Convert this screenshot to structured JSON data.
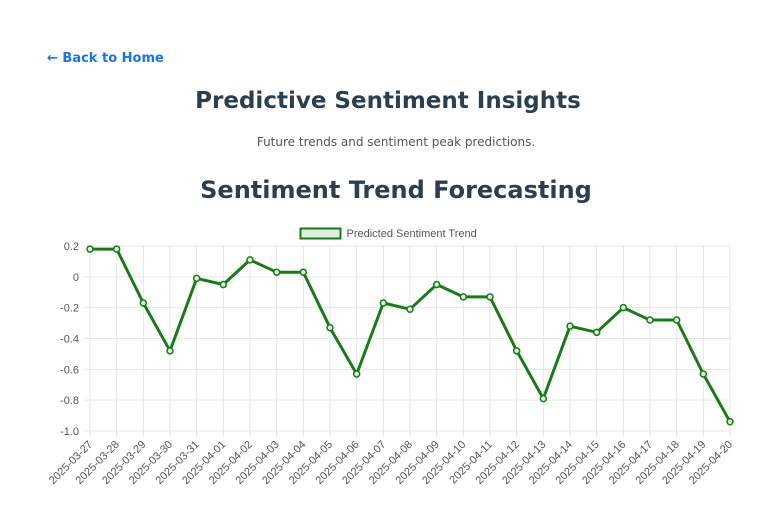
{
  "nav": {
    "back_label": "← Back to Home"
  },
  "header": {
    "title": "Predictive Sentiment Insights",
    "subtitle": "Future trends and sentiment peak predictions."
  },
  "chart_section": {
    "title": "Sentiment Trend Forecasting"
  },
  "colors": {
    "line": "#1a7a1a",
    "legend_fill": "#dcefdc",
    "grid": "#e6e6e6",
    "title": "#2c3e50",
    "link": "#1a73e8"
  },
  "chart_data": {
    "type": "line",
    "x": [
      "2025-03-27",
      "2025-03-28",
      "2025-03-29",
      "2025-03-30",
      "2025-03-31",
      "2025-04-01",
      "2025-04-02",
      "2025-04-03",
      "2025-04-04",
      "2025-04-05",
      "2025-04-06",
      "2025-04-07",
      "2025-04-08",
      "2025-04-09",
      "2025-04-10",
      "2025-04-11",
      "2025-04-12",
      "2025-04-13",
      "2025-04-14",
      "2025-04-15",
      "2025-04-16",
      "2025-04-17",
      "2025-04-18",
      "2025-04-19",
      "2025-04-20"
    ],
    "series": [
      {
        "name": "Predicted Sentiment Trend",
        "values": [
          0.18,
          0.18,
          -0.17,
          -0.48,
          -0.01,
          -0.05,
          0.11,
          0.03,
          0.03,
          -0.33,
          -0.63,
          -0.17,
          -0.21,
          -0.05,
          -0.13,
          -0.13,
          -0.48,
          -0.79,
          -0.32,
          -0.36,
          -0.2,
          -0.28,
          -0.28,
          -0.63,
          -0.94
        ]
      }
    ],
    "ylim": [
      -1.0,
      0.2
    ],
    "yticks": [
      "0.2",
      "0",
      "-0.2",
      "-0.4",
      "-0.6",
      "-0.8",
      "-1.0"
    ],
    "grid": true,
    "legend": "top-center"
  }
}
